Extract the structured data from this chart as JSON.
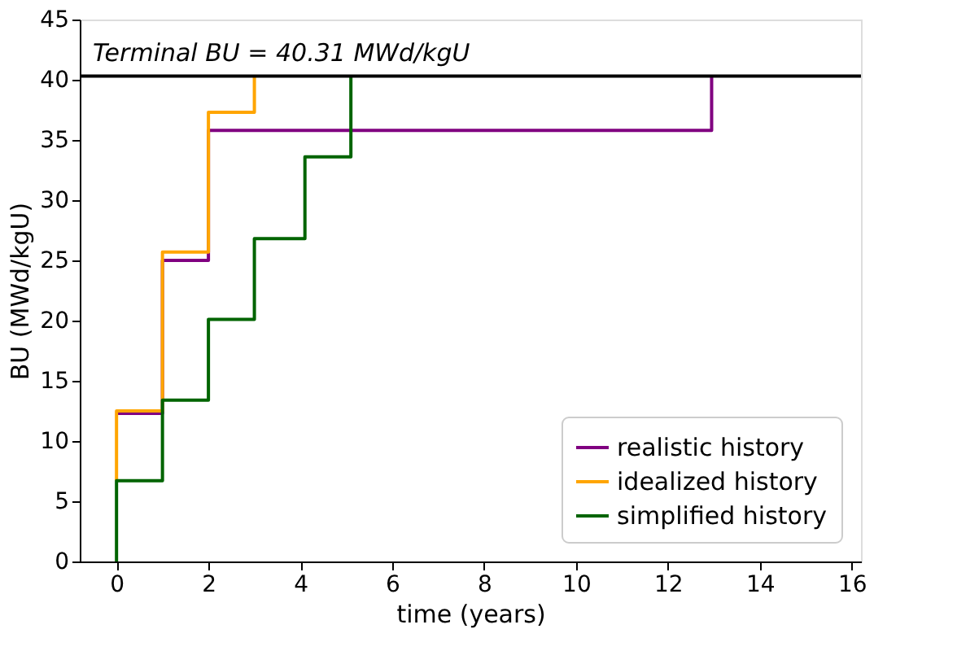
{
  "chart_data": {
    "type": "step",
    "xlabel": "time (years)",
    "ylabel": "BU (MWd/kgU)",
    "xlim": [
      -0.8,
      16.2
    ],
    "xticks": [
      0,
      2,
      4,
      6,
      8,
      10,
      12,
      14,
      16
    ],
    "ylim": [
      0,
      45
    ],
    "yticks": [
      0,
      5,
      10,
      15,
      20,
      25,
      30,
      35,
      40,
      45
    ],
    "grid": false,
    "legend": "bottom right",
    "ref_lines": [
      {
        "axis": "y",
        "value": 40.31,
        "label": "Terminal BU = 40.31 MWd/kgU",
        "color": "#000000"
      }
    ],
    "series": [
      {
        "name": "realistic history",
        "color": "#800080",
        "x": [
          0,
          1,
          2,
          12.95
        ],
        "values": [
          12.3,
          25.0,
          35.8,
          40.3
        ]
      },
      {
        "name": "idealized history",
        "color": "#ffa500",
        "x": [
          0,
          0,
          1,
          2,
          3
        ],
        "values": [
          6.7,
          12.5,
          25.7,
          37.3,
          40.3
        ]
      },
      {
        "name": "simplified history",
        "color": "#006400",
        "x": [
          0,
          0,
          1,
          2,
          3,
          4.1,
          5.1
        ],
        "values": [
          0,
          6.7,
          13.4,
          20.1,
          26.8,
          33.6,
          40.3
        ]
      }
    ]
  }
}
